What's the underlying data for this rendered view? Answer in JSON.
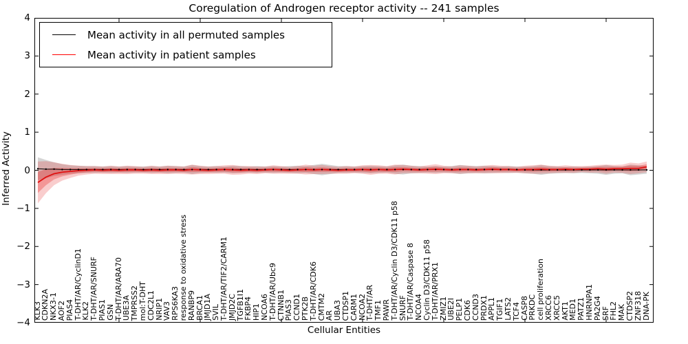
{
  "chart_data": {
    "type": "line",
    "title": "Coregulation of Androgen receptor activity -- 241 samples",
    "xlabel": "Cellular Entities",
    "ylabel": "Inferred Activity",
    "ylim": [
      -4,
      4
    ],
    "grid": false,
    "legend_position": "upper left",
    "yticks": [
      {
        "value": 4,
        "label": "4"
      },
      {
        "value": 3,
        "label": "3"
      },
      {
        "value": 2,
        "label": "2"
      },
      {
        "value": 1,
        "label": "1"
      },
      {
        "value": 0,
        "label": "0"
      },
      {
        "value": -1,
        "label": "−1"
      },
      {
        "value": -2,
        "label": "−2"
      },
      {
        "value": -3,
        "label": "−3"
      },
      {
        "value": -4,
        "label": "−4"
      }
    ],
    "categories": [
      "KLK3",
      "CDKN2A",
      "NKX3-1",
      "AOF2",
      "PIAS4",
      "T-DHT/AR/CyclinD1",
      "KLK2",
      "T-DHT/AR/SNURF",
      "PIAS1",
      "GSN",
      "T-DHT/AR/ARA70",
      "UBE3A",
      "TMPRSS2",
      "mol:T-DHT",
      "CDC2L1",
      "NRIP1",
      "VAV3",
      "RPS6KA3",
      "response to oxidative stress",
      "RANBP9",
      "BRCA1",
      "JMJD1A",
      "SVIL",
      "T-DHT/AR/TIF2/CARM1",
      "JMJD2C",
      "TGFB1I1",
      "FKBP4",
      "HIP1",
      "NCOA6",
      "T-DHT/AR/Ubc9",
      "CTNNB1",
      "PIAS3",
      "CCND1",
      "PTK2B",
      "T-DHT/AR/CDK6",
      "CMTM2",
      "AR",
      "UBA3",
      "CTDSP1",
      "CARM1",
      "NCOA2",
      "T-DHT/AR",
      "TMF1",
      "PAWR",
      "T-DHT/AR/Cyclin D3/CDK11 p58",
      "SNURF",
      "T-DHT/AR/Caspase 8",
      "NCOA4",
      "Cyclin D3/CDK11 p58",
      "T-DHT/AR/PRX1",
      "ZMIZ1",
      "UBE2I",
      "PELP1",
      "CDK6",
      "CCND3",
      "PRDX1",
      "APPL1",
      "TGIF1",
      "LATS2",
      "TCF4",
      "CASP8",
      "PRKDC",
      "cell proliferation",
      "XRCC6",
      "XRCC5",
      "AKT1",
      "MED1",
      "PATZ1",
      "HNRNPA1",
      "PA2G4",
      "SRF",
      "FHL2",
      "MAK",
      "CTDSP2",
      "ZNF318",
      "DNA-PK"
    ],
    "series": [
      {
        "name": "Mean activity in all permuted samples",
        "color": "#000000",
        "band_color": "#969696",
        "mean": [
          0.04,
          0.03,
          0.03,
          0.02,
          0.02,
          0.02,
          0.02,
          0.02,
          0.02,
          0.02,
          0.02,
          0.02,
          0.02,
          0.02,
          0.02,
          0.02,
          0.02,
          0.02,
          0.02,
          0.02,
          0.02,
          0.02,
          0.02,
          0.02,
          0.02,
          0.02,
          0.02,
          0.02,
          0.02,
          0.02,
          0.02,
          0.02,
          0.02,
          0.02,
          0.02,
          0.02,
          0.02,
          0.02,
          0.02,
          0.02,
          0.02,
          0.02,
          0.02,
          0.02,
          0.02,
          0.02,
          0.02,
          0.02,
          0.02,
          0.02,
          0.02,
          0.02,
          0.02,
          0.02,
          0.02,
          0.02,
          0.02,
          0.02,
          0.02,
          0.02,
          0.01,
          0.01,
          0.01,
          0.01,
          0.01,
          0.01,
          0.01,
          0.01,
          0.01,
          0.01,
          0.01,
          0.01,
          0.01,
          0.01,
          0.01,
          0.01
        ],
        "band_half": [
          0.3,
          0.24,
          0.18,
          0.14,
          0.11,
          0.1,
          0.09,
          0.09,
          0.08,
          0.09,
          0.08,
          0.09,
          0.08,
          0.08,
          0.09,
          0.08,
          0.1,
          0.09,
          0.08,
          0.12,
          0.09,
          0.08,
          0.09,
          0.08,
          0.1,
          0.09,
          0.08,
          0.09,
          0.08,
          0.09,
          0.08,
          0.09,
          0.1,
          0.09,
          0.12,
          0.15,
          0.12,
          0.09,
          0.09,
          0.08,
          0.09,
          0.1,
          0.09,
          0.08,
          0.11,
          0.13,
          0.1,
          0.09,
          0.08,
          0.09,
          0.08,
          0.09,
          0.12,
          0.1,
          0.09,
          0.1,
          0.09,
          0.08,
          0.09,
          0.08,
          0.09,
          0.1,
          0.13,
          0.1,
          0.09,
          0.08,
          0.09,
          0.08,
          0.09,
          0.1,
          0.13,
          0.1,
          0.09,
          0.14,
          0.12,
          0.1
        ]
      },
      {
        "name": "Mean activity in patient samples",
        "color": "#e01010",
        "band_color": "#e41a1c",
        "mean": [
          -0.32,
          -0.18,
          -0.09,
          -0.05,
          -0.03,
          -0.01,
          0,
          0.01,
          0,
          0.01,
          0,
          0.01,
          0.01,
          0,
          0.01,
          0,
          0.01,
          0.01,
          0,
          0.02,
          0.01,
          0,
          0.01,
          0.02,
          0.01,
          0,
          0.01,
          0,
          0.01,
          0.02,
          0.01,
          0,
          0.01,
          0.02,
          0.01,
          0.02,
          0.01,
          0,
          0.01,
          0.01,
          0.02,
          0.01,
          0.02,
          0.01,
          0.02,
          0.03,
          0.02,
          0.01,
          0.02,
          0.03,
          0.02,
          0.01,
          0.02,
          0.02,
          0.01,
          0.02,
          0.03,
          0.02,
          0.02,
          0.01,
          0.02,
          0.02,
          0.03,
          0.02,
          0.02,
          0.03,
          0.02,
          0.03,
          0.03,
          0.04,
          0.03,
          0.04,
          0.04,
          0.05,
          0.05,
          0.09
        ],
        "band_half": [
          0.55,
          0.42,
          0.3,
          0.22,
          0.17,
          0.13,
          0.11,
          0.1,
          0.1,
          0.11,
          0.1,
          0.11,
          0.1,
          0.09,
          0.11,
          0.1,
          0.11,
          0.1,
          0.1,
          0.13,
          0.11,
          0.1,
          0.1,
          0.11,
          0.13,
          0.11,
          0.1,
          0.1,
          0.09,
          0.11,
          0.1,
          0.09,
          0.1,
          0.13,
          0.11,
          0.12,
          0.1,
          0.09,
          0.1,
          0.09,
          0.11,
          0.13,
          0.11,
          0.1,
          0.13,
          0.11,
          0.1,
          0.09,
          0.11,
          0.13,
          0.1,
          0.09,
          0.11,
          0.1,
          0.09,
          0.1,
          0.11,
          0.1,
          0.09,
          0.08,
          0.1,
          0.11,
          0.12,
          0.1,
          0.09,
          0.1,
          0.09,
          0.08,
          0.09,
          0.1,
          0.12,
          0.1,
          0.11,
          0.15,
          0.13,
          0.14
        ]
      }
    ]
  }
}
